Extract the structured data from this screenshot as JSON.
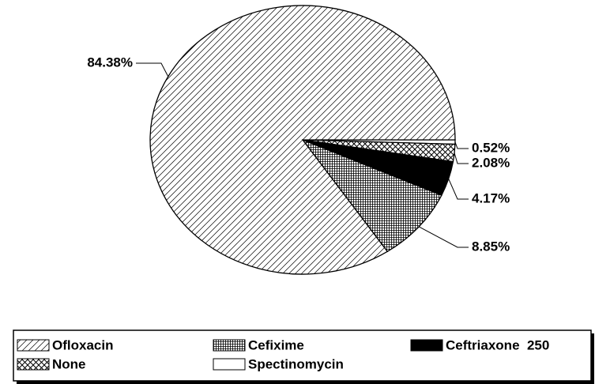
{
  "chart_data": {
    "type": "pie",
    "categories": [
      "Ofloxacin",
      "Cefixime",
      "Ceftriaxone  250",
      "None",
      "Spectinomycin"
    ],
    "values": [
      84.38,
      8.85,
      4.17,
      2.08,
      0.52
    ],
    "value_labels": [
      "84.38%",
      "8.85%",
      "4.17%",
      "2.08%",
      "0.52%"
    ],
    "patterns": [
      "diagonal",
      "grid",
      "solid",
      "crosshatch",
      "none"
    ],
    "legend": "bottom"
  }
}
